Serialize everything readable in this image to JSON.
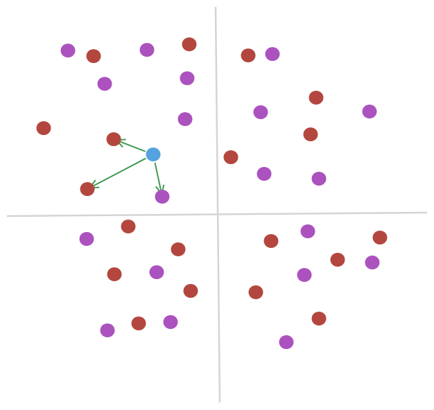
{
  "colors": {
    "background": "#ffffff",
    "axis": "#d4d4d4",
    "purple": "#ab52bf",
    "red": "#b3473f",
    "query": "#55a2e0",
    "arrow": "#3f9a52"
  },
  "points": [
    {
      "c": "purple"
    },
    {
      "c": "red"
    },
    {
      "c": "purple"
    },
    {
      "c": "red"
    },
    {
      "c": "purple"
    },
    {
      "c": "purple"
    },
    {
      "c": "red"
    },
    {
      "c": "red"
    },
    {
      "c": "purple"
    },
    {
      "c": "red"
    },
    {
      "c": "purple"
    },
    {
      "c": "red"
    },
    {
      "c": "purple"
    },
    {
      "c": "red"
    },
    {
      "c": "purple"
    },
    {
      "c": "purple"
    },
    {
      "c": "red"
    },
    {
      "c": "red"
    },
    {
      "c": "purple"
    },
    {
      "c": "purple"
    },
    {
      "c": "red"
    },
    {
      "c": "purple"
    },
    {
      "c": "red"
    },
    {
      "c": "red"
    },
    {
      "c": "purple"
    },
    {
      "c": "red"
    },
    {
      "c": "purple"
    },
    {
      "c": "red"
    },
    {
      "c": "purple"
    },
    {
      "c": "red"
    },
    {
      "c": "purple"
    },
    {
      "c": "red"
    },
    {
      "c": "red"
    },
    {
      "c": "purple"
    },
    {
      "c": "purple"
    },
    {
      "c": "red"
    },
    {
      "c": "red"
    },
    {
      "c": "purple"
    }
  ],
  "query_point": {
    "c": "query"
  },
  "arrows_to": [
    7,
    9,
    10
  ]
}
